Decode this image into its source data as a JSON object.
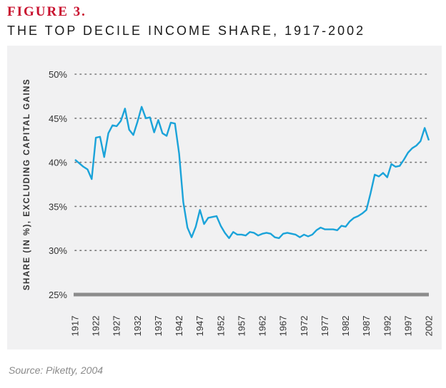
{
  "figure": {
    "label": "FIGURE 3.",
    "title": "THE TOP DECILE INCOME SHARE, 1917-2002",
    "source": "Source: Piketty, 2004"
  },
  "colors": {
    "label": "#c8102e",
    "line": "#1ba3d9",
    "baseline": "#8c8c8c",
    "panel": "#f1f1f2"
  },
  "chart_data": {
    "type": "line",
    "title": "THE TOP DECILE INCOME SHARE, 1917-2002",
    "xlabel": "",
    "ylabel": "SHARE (IN %), EXCLUDING CAPITAL GAINS",
    "ylim": [
      25,
      50
    ],
    "y_ticks": [
      50,
      45,
      40,
      35,
      30,
      25
    ],
    "y_tick_labels": [
      "50%",
      "45%",
      "40%",
      "35%",
      "30%",
      "25%"
    ],
    "x_ticks": [
      1917,
      1922,
      1927,
      1932,
      1937,
      1942,
      1947,
      1952,
      1957,
      1962,
      1967,
      1972,
      1977,
      1982,
      1987,
      1992,
      1997,
      2002
    ],
    "xlim": [
      1917,
      2002
    ],
    "grid": "dotted horizontal",
    "series": [
      {
        "x": [
          1917,
          1918,
          1919,
          1920,
          1921,
          1922,
          1923,
          1924,
          1925,
          1926,
          1927,
          1928,
          1929,
          1930,
          1931,
          1932,
          1933,
          1934,
          1935,
          1936,
          1937,
          1938,
          1939,
          1940,
          1941,
          1942,
          1943,
          1944,
          1945,
          1946,
          1947,
          1948,
          1949,
          1950,
          1951,
          1952,
          1953,
          1954,
          1955,
          1956,
          1957,
          1958,
          1959,
          1960,
          1961,
          1962,
          1963,
          1964,
          1965,
          1966,
          1967,
          1968,
          1969,
          1970,
          1971,
          1972,
          1973,
          1974,
          1975,
          1976,
          1977,
          1978,
          1979,
          1980,
          1981,
          1982,
          1983,
          1984,
          1985,
          1986,
          1987,
          1988,
          1989,
          1990,
          1991,
          1992,
          1993,
          1994,
          1995,
          1996,
          1997,
          1998,
          1999,
          2000,
          2001,
          2002
        ],
        "values": [
          40.3,
          39.9,
          39.5,
          39.2,
          38.1,
          42.8,
          42.9,
          40.6,
          43.3,
          44.2,
          44.1,
          44.7,
          46.1,
          43.7,
          43.1,
          44.6,
          46.3,
          45.0,
          45.1,
          43.4,
          44.8,
          43.3,
          43.0,
          44.5,
          44.4,
          41.0,
          35.5,
          32.6,
          31.5,
          32.7,
          34.6,
          33.0,
          33.7,
          33.8,
          33.9,
          32.8,
          32.0,
          31.4,
          32.1,
          31.8,
          31.8,
          31.7,
          32.1,
          32.0,
          31.7,
          31.9,
          32.0,
          31.9,
          31.5,
          31.4,
          31.9,
          32.0,
          31.9,
          31.8,
          31.5,
          31.8,
          31.6,
          31.8,
          32.3,
          32.6,
          32.4,
          32.4,
          32.4,
          32.3,
          32.8,
          32.7,
          33.3,
          33.7,
          33.9,
          34.2,
          34.6,
          36.5,
          38.6,
          38.4,
          38.8,
          38.3,
          39.8,
          39.5,
          39.6,
          40.3,
          41.1,
          41.6,
          41.9,
          42.4,
          43.9,
          42.5
        ]
      }
    ]
  }
}
